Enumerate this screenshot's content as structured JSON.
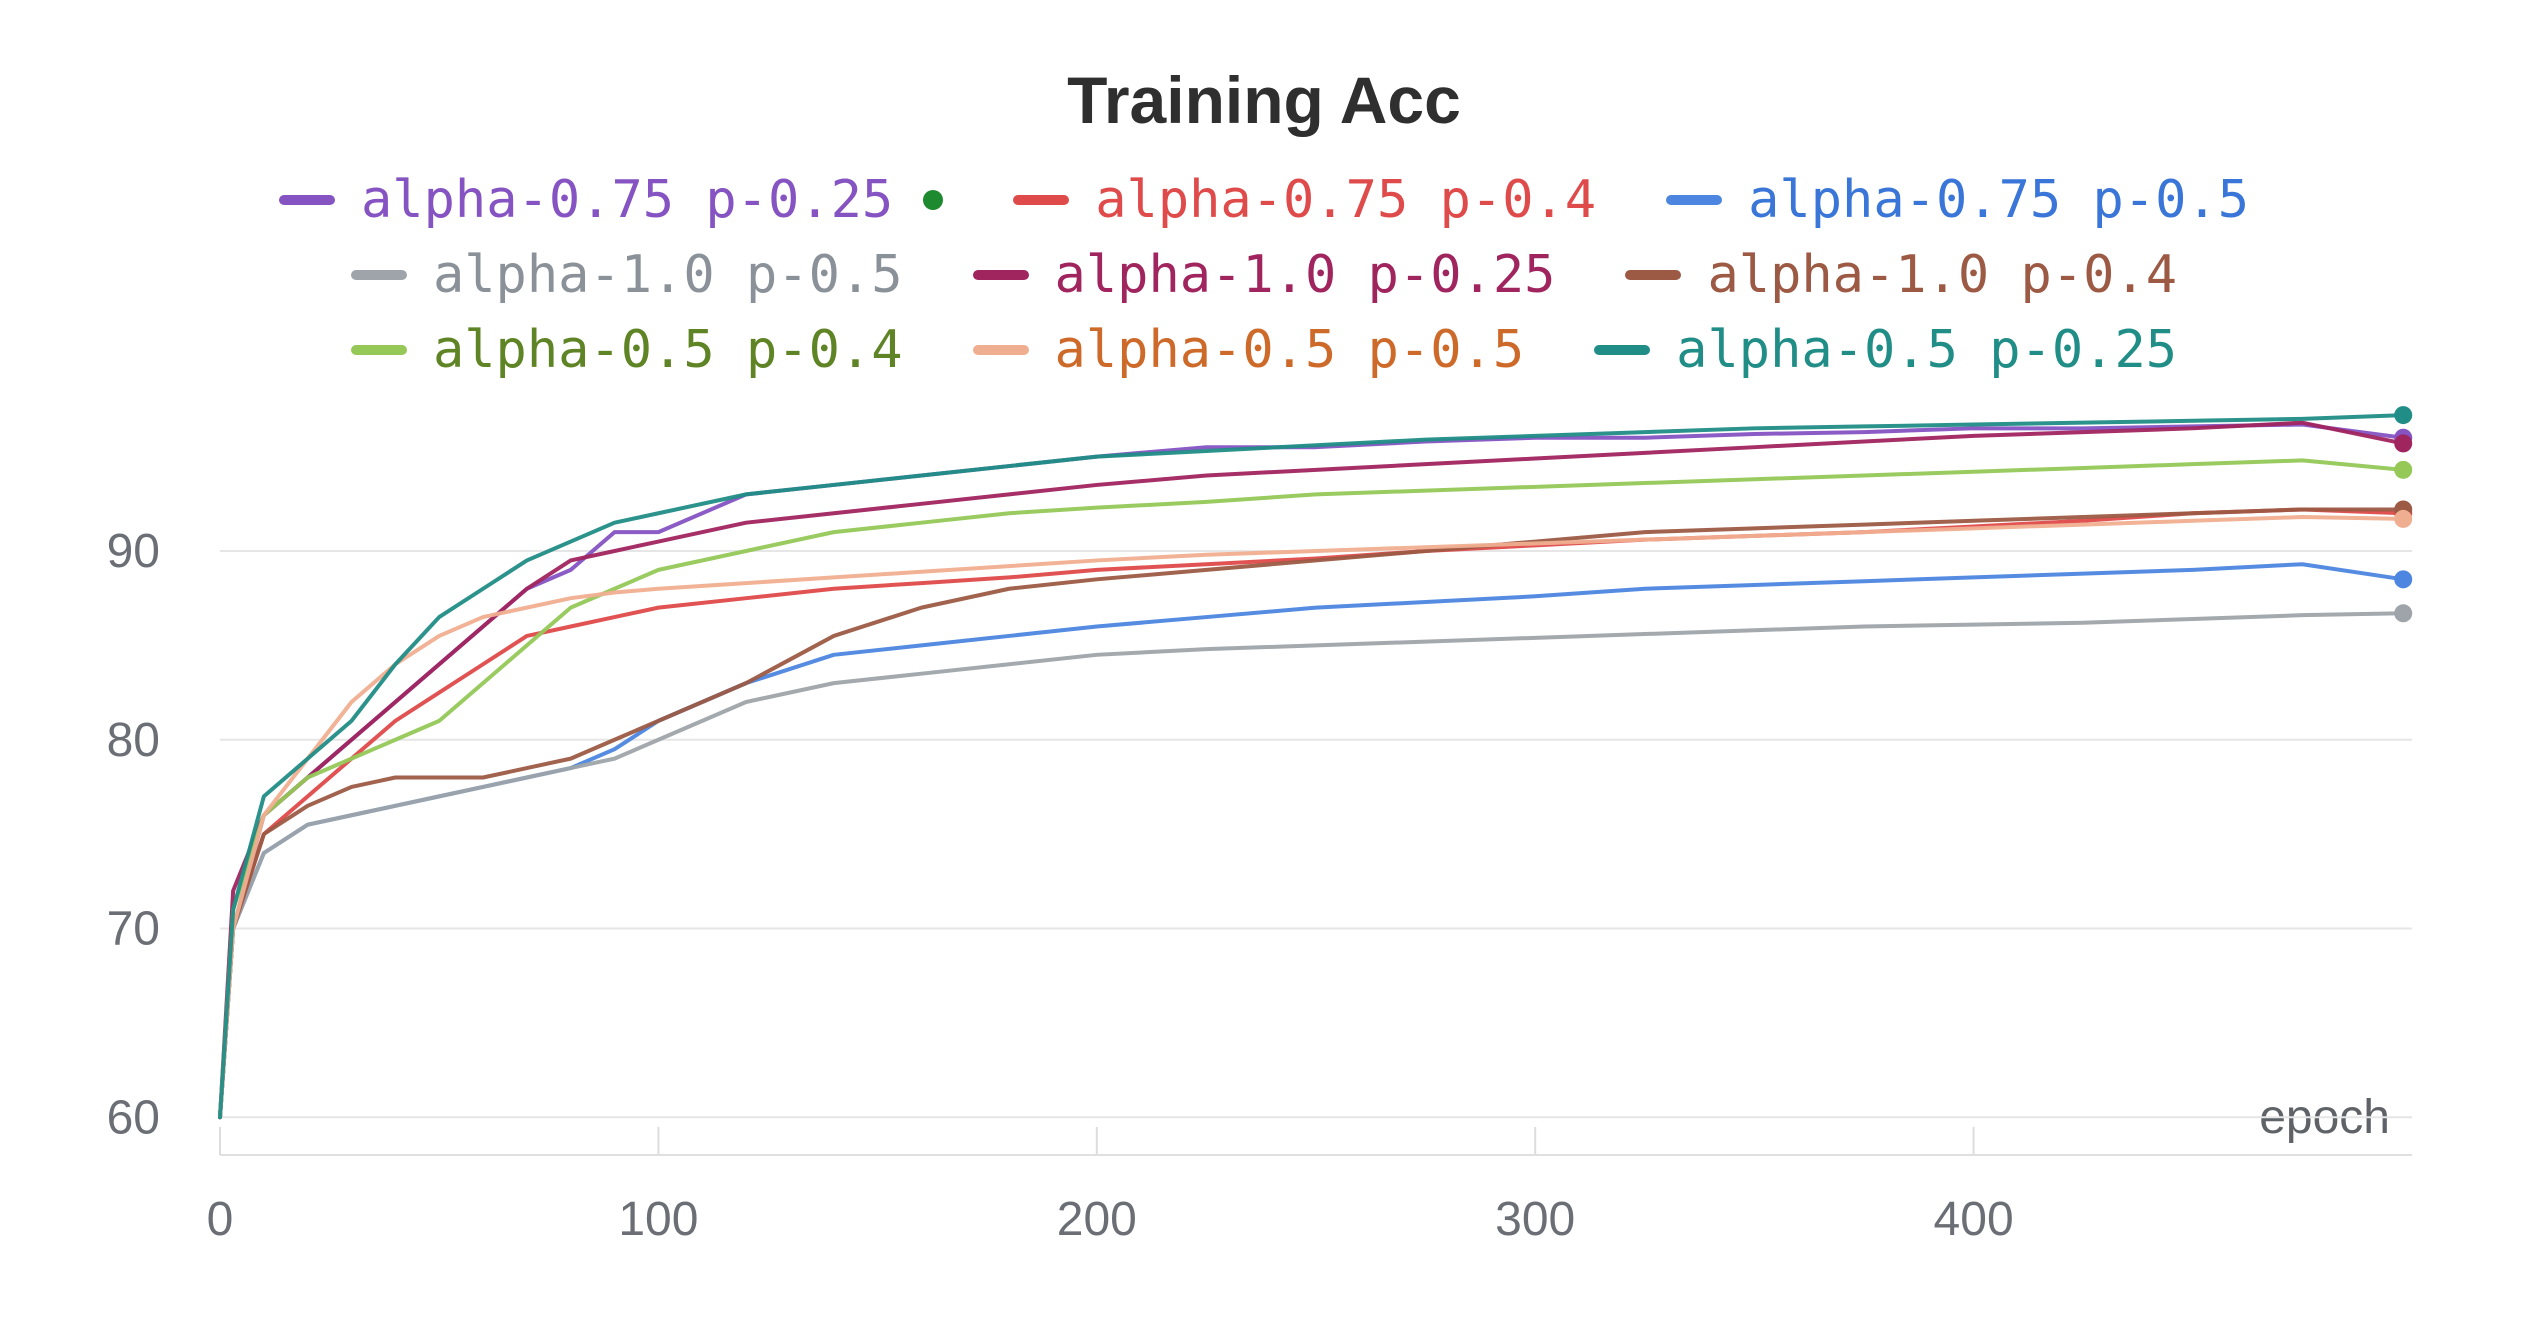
{
  "chart_data": {
    "type": "line",
    "title": "Training Acc",
    "xlabel": "epoch",
    "ylabel": "",
    "xlim": [
      0,
      500
    ],
    "ylim": [
      58,
      98
    ],
    "xticks": [
      0,
      100,
      200,
      300,
      400
    ],
    "yticks": [
      60,
      70,
      80,
      90
    ],
    "grid": true,
    "legend_position": "top-center",
    "legend_rows": [
      [
        "alpha-0.75 p-0.25",
        "alpha-0.75 p-0.4",
        "alpha-0.75 p-0.5"
      ],
      [
        "alpha-1.0 p-0.5",
        "alpha-1.0 p-0.25",
        "alpha-1.0 p-0.4"
      ],
      [
        "alpha-0.5 p-0.4",
        "alpha-0.5 p-0.5",
        "alpha-0.5 p-0.25"
      ]
    ],
    "highlighted_series": "alpha-0.75 p-0.25",
    "x": [
      0,
      3,
      10,
      20,
      30,
      40,
      50,
      60,
      70,
      80,
      90,
      100,
      120,
      140,
      160,
      180,
      200,
      225,
      250,
      275,
      300,
      325,
      350,
      375,
      400,
      425,
      450,
      475,
      498
    ],
    "series": [
      {
        "name": "alpha-0.75 p-0.25",
        "color": "#8553c2",
        "text_color": "#8553c2",
        "values": [
          60,
          70,
          76,
          78,
          80,
          82,
          84,
          86,
          88,
          89,
          91,
          91,
          93,
          93.5,
          94,
          94.5,
          95,
          95.5,
          95.5,
          95.8,
          96,
          96,
          96.2,
          96.3,
          96.5,
          96.5,
          96.6,
          96.7,
          96
        ]
      },
      {
        "name": "alpha-0.75 p-0.4",
        "color": "#df4a4a",
        "text_color": "#df4a4a",
        "values": [
          60,
          70,
          75,
          77,
          79,
          81,
          82.5,
          84,
          85.5,
          86,
          86.5,
          87,
          87.5,
          88,
          88.3,
          88.6,
          89,
          89.3,
          89.6,
          90,
          90.3,
          90.6,
          90.8,
          91,
          91.3,
          91.6,
          92,
          92.2,
          92
        ]
      },
      {
        "name": "alpha-0.75 p-0.5",
        "color": "#4c86e0",
        "text_color": "#3a75d8",
        "values": [
          60,
          70,
          74,
          75.5,
          76,
          76.5,
          77,
          77.5,
          78,
          78.5,
          79.5,
          81,
          83,
          84.5,
          85,
          85.5,
          86,
          86.5,
          87,
          87.3,
          87.6,
          88,
          88.2,
          88.4,
          88.6,
          88.8,
          89,
          89.3,
          88.5
        ]
      },
      {
        "name": "alpha-1.0 p-0.5",
        "color": "#9ea4a9",
        "text_color": "#8b9198",
        "values": [
          60,
          70,
          74,
          75.5,
          76,
          76.5,
          77,
          77.5,
          78,
          78.5,
          79,
          80,
          82,
          83,
          83.5,
          84,
          84.5,
          84.8,
          85,
          85.2,
          85.4,
          85.6,
          85.8,
          86,
          86.1,
          86.2,
          86.4,
          86.6,
          86.7
        ]
      },
      {
        "name": "alpha-1.0 p-0.25",
        "color": "#a0245e",
        "text_color": "#a0245e",
        "values": [
          60,
          72,
          76,
          78,
          80,
          82,
          84,
          86,
          88,
          89.5,
          90,
          90.5,
          91.5,
          92,
          92.5,
          93,
          93.5,
          94,
          94.3,
          94.6,
          94.9,
          95.2,
          95.5,
          95.8,
          96.1,
          96.3,
          96.5,
          96.8,
          95.7
        ]
      },
      {
        "name": "alpha-1.0 p-0.4",
        "color": "#9c5a45",
        "text_color": "#9c5a45",
        "values": [
          60,
          70,
          75,
          76.5,
          77.5,
          78,
          78,
          78,
          78.5,
          79,
          80,
          81,
          83,
          85.5,
          87,
          88,
          88.5,
          89,
          89.5,
          90,
          90.5,
          91,
          91.2,
          91.4,
          91.6,
          91.8,
          92,
          92.2,
          92.2
        ]
      },
      {
        "name": "alpha-0.5 p-0.4",
        "color": "#95c857",
        "text_color": "#5f8425",
        "values": [
          60,
          71,
          76,
          78,
          79,
          80,
          81,
          83,
          85,
          87,
          88,
          89,
          90,
          91,
          91.5,
          92,
          92.3,
          92.6,
          93,
          93.2,
          93.4,
          93.6,
          93.8,
          94,
          94.2,
          94.4,
          94.6,
          94.8,
          94.3
        ]
      },
      {
        "name": "alpha-0.5 p-0.5",
        "color": "#f0ae90",
        "text_color": "#cd6a2a",
        "values": [
          60,
          70,
          76,
          79,
          82,
          84,
          85.5,
          86.5,
          87,
          87.5,
          87.8,
          88,
          88.3,
          88.6,
          88.9,
          89.2,
          89.5,
          89.8,
          90,
          90.2,
          90.4,
          90.6,
          90.8,
          91,
          91.2,
          91.4,
          91.6,
          91.8,
          91.7
        ]
      },
      {
        "name": "alpha-0.5 p-0.25",
        "color": "#208d86",
        "text_color": "#208d86",
        "values": [
          60,
          71,
          77,
          79,
          81,
          84,
          86.5,
          88,
          89.5,
          90.5,
          91.5,
          92,
          93,
          93.5,
          94,
          94.5,
          95,
          95.3,
          95.6,
          95.9,
          96.1,
          96.3,
          96.5,
          96.6,
          96.7,
          96.8,
          96.9,
          97,
          97.2
        ]
      }
    ]
  }
}
